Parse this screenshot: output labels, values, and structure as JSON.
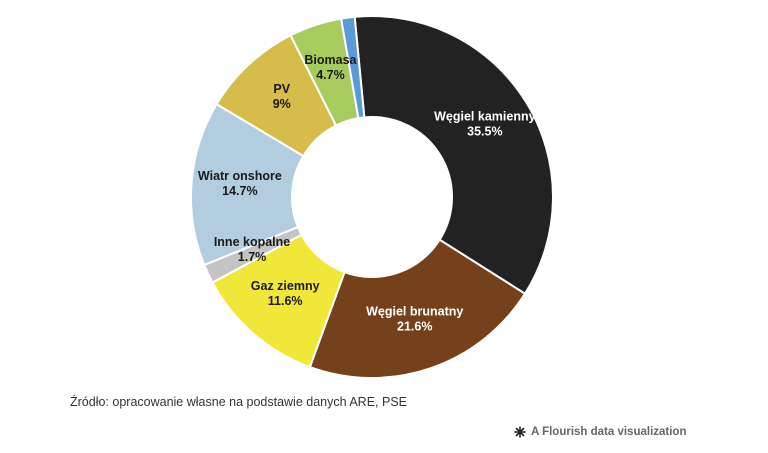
{
  "chart_data": {
    "type": "pie",
    "variant": "donut",
    "slices": [
      {
        "label": "Węgiel kamienny",
        "value": 35.5,
        "display": "35.5%",
        "color": "#222222",
        "text_color": "#ffffff"
      },
      {
        "label": "Węgiel brunatny",
        "value": 21.6,
        "display": "21.6%",
        "color": "#74411b",
        "text_color": "#ffffff"
      },
      {
        "label": "Gaz ziemny",
        "value": 11.6,
        "display": "11.6%",
        "color": "#f1e739",
        "text_color": "#1a1a1a"
      },
      {
        "label": "Inne kopalne",
        "value": 1.7,
        "display": "1.7%",
        "color": "#c4c4c4",
        "text_color": "#1a1a1a"
      },
      {
        "label": "Wiatr onshore",
        "value": 14.7,
        "display": "14.7%",
        "color": "#b3cde0",
        "text_color": "#1a1a1a"
      },
      {
        "label": "PV",
        "value": 9,
        "display": "9%",
        "color": "#d6bc4a",
        "text_color": "#1a1a1a"
      },
      {
        "label": "Biomasa",
        "value": 4.7,
        "display": "4.7%",
        "color": "#a7cc5d",
        "text_color": "#1a1a1a"
      },
      {
        "label": "",
        "value": 1.2,
        "display": "",
        "color": "#5b9bd5",
        "text_color": "#1a1a1a"
      }
    ]
  },
  "footer": {
    "source": "Źródło: opracowanie własne na podstawie danych ARE, PSE",
    "credit": "A Flourish data visualization"
  }
}
